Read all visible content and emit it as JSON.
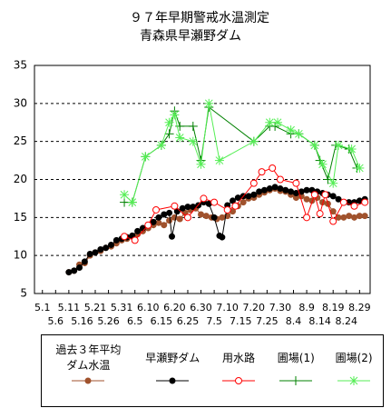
{
  "chart_data": {
    "type": "line",
    "title": "９７年早期警戒水温測定",
    "subtitle": "青森県早瀬野ダム",
    "xlim": [
      "4.28",
      "9.2"
    ],
    "xticks": [
      "5.1",
      "5.6",
      "5.11",
      "5.16",
      "5.21",
      "5.26",
      "5.31",
      "6.5",
      "6.10",
      "6.15",
      "6.20",
      "6.25",
      "6.30",
      "7.5",
      "7.10",
      "7.15",
      "7.20",
      "7.25",
      "7.30",
      "8.4",
      "8.9",
      "8.14",
      "8.19",
      "8.24",
      "8.29"
    ],
    "ylim": [
      5,
      35
    ],
    "yticks": [
      5,
      10,
      15,
      20,
      25,
      30,
      35
    ],
    "grid": true,
    "legend": "bottom",
    "series": [
      {
        "name": "過去３年平均ダム水温",
        "color": "#a0522d",
        "marker": "filled-circle",
        "x": [
          "5.11",
          "5.13",
          "5.15",
          "5.17",
          "5.19",
          "5.21",
          "5.23",
          "5.25",
          "5.27",
          "5.29",
          "5.31",
          "6.2",
          "6.4",
          "6.6",
          "6.8",
          "6.10",
          "6.12",
          "6.14",
          "6.16",
          "6.18",
          "6.20",
          "6.22",
          "6.24",
          "6.26",
          "6.28",
          "6.30",
          "7.2",
          "7.4",
          "7.6",
          "7.8",
          "7.10",
          "7.12",
          "7.14",
          "7.16",
          "7.18",
          "7.20",
          "7.22",
          "7.24",
          "7.26",
          "7.28",
          "7.30",
          "8.1",
          "8.3",
          "8.5",
          "8.7",
          "8.9",
          "8.11",
          "8.13",
          "8.15",
          "8.17",
          "8.19",
          "8.21",
          "8.23",
          "8.25",
          "8.27",
          "8.29",
          "8.31"
        ],
        "values": [
          7.8,
          8.0,
          8.8,
          9.0,
          10.0,
          10.4,
          10.6,
          11.0,
          11.2,
          11.6,
          12.0,
          12.2,
          12.6,
          12.8,
          13.2,
          13.6,
          14.0,
          14.3,
          14.0,
          14.6,
          15.0,
          14.8,
          15.6,
          16.0,
          16.2,
          15.4,
          15.2,
          15.0,
          14.8,
          15.0,
          15.2,
          15.8,
          16.5,
          17.0,
          17.5,
          17.6,
          18.0,
          18.3,
          18.6,
          18.8,
          18.5,
          18.4,
          18.0,
          17.6,
          17.8,
          17.4,
          17.2,
          17.6,
          17.0,
          16.8,
          15.8,
          15.0,
          15.0,
          15.2,
          15.0,
          15.2,
          15.2
        ]
      },
      {
        "name": "早瀬野ダム",
        "color": "#000000",
        "marker": "filled-circle",
        "x": [
          "5.11",
          "5.13",
          "5.15",
          "5.17",
          "5.19",
          "5.21",
          "5.23",
          "5.25",
          "5.27",
          "5.29",
          "5.31",
          "6.2",
          "6.4",
          "6.6",
          "6.8",
          "6.10",
          "6.12",
          "6.14",
          "6.16",
          "6.18",
          "6.19",
          "6.21",
          "6.23",
          "6.25",
          "6.27",
          "6.29",
          "7.1",
          "7.3",
          "7.5",
          "7.7",
          "7.8",
          "7.10",
          "7.12",
          "7.14",
          "7.16",
          "7.18",
          "7.20",
          "7.22",
          "7.24",
          "7.26",
          "7.28",
          "7.30",
          "8.1",
          "8.3",
          "8.5",
          "8.7",
          "8.9",
          "8.11",
          "8.13",
          "8.15",
          "8.17",
          "8.19",
          "8.21",
          "8.23",
          "8.25",
          "8.27",
          "8.29",
          "8.31"
        ],
        "values": [
          7.8,
          8.0,
          8.4,
          9.2,
          10.2,
          10.4,
          10.8,
          11.0,
          11.4,
          12.0,
          12.2,
          12.4,
          12.6,
          13.2,
          13.6,
          14.0,
          14.4,
          15.0,
          15.4,
          15.6,
          12.5,
          15.8,
          16.2,
          16.4,
          16.4,
          16.6,
          17.0,
          16.8,
          15.0,
          12.6,
          12.4,
          16.6,
          17.2,
          17.6,
          17.8,
          17.8,
          18.0,
          18.4,
          18.6,
          18.8,
          19.0,
          18.8,
          18.6,
          18.4,
          18.2,
          18.4,
          18.6,
          18.6,
          18.4,
          18.2,
          18.0,
          17.8,
          17.4,
          17.0,
          17.0,
          17.0,
          17.2,
          17.4
        ]
      },
      {
        "name": "用水路",
        "color": "#ff0000",
        "marker": "open-circle",
        "x": [
          "6.1",
          "6.5",
          "6.10",
          "6.13",
          "6.20",
          "6.25",
          "7.1",
          "7.5",
          "7.10",
          "7.13",
          "7.20",
          "7.23",
          "7.27",
          "7.30",
          "8.5",
          "8.9",
          "8.12",
          "8.14",
          "8.16",
          "8.19",
          "8.23",
          "8.27",
          "8.31"
        ],
        "values": [
          12.5,
          12.0,
          14.0,
          16.0,
          16.5,
          15.0,
          17.5,
          17.0,
          16.0,
          16.5,
          19.5,
          21.0,
          21.5,
          20.0,
          19.5,
          15.0,
          18.0,
          15.5,
          18.0,
          14.5,
          17.0,
          16.5,
          17.0
        ]
      },
      {
        "name": "圃場(1)",
        "color": "#008000",
        "marker": "plus",
        "x": [
          "6.1",
          "6.4",
          "6.9",
          "6.15",
          "6.18",
          "6.20",
          "6.22",
          "6.27",
          "6.30",
          "7.3",
          "7.20",
          "7.26",
          "7.28",
          "8.3",
          "8.6",
          "8.12",
          "8.14",
          "8.17",
          "8.20",
          "8.25",
          "8.28"
        ],
        "values": [
          17.0,
          17.0,
          23.0,
          24.5,
          26.0,
          29.0,
          27.0,
          27.0,
          22.5,
          29.5,
          25.0,
          27.0,
          27.0,
          26.0,
          26.0,
          24.5,
          22.5,
          20.0,
          24.5,
          24.0,
          21.5
        ]
      },
      {
        "name": "圃場(2)",
        "color": "#55ee55",
        "marker": "asterisk",
        "x": [
          "6.1",
          "6.4",
          "6.9",
          "6.15",
          "6.18",
          "6.20",
          "6.22",
          "6.27",
          "6.30",
          "7.3",
          "7.7",
          "7.20",
          "7.26",
          "7.29",
          "8.3",
          "8.6",
          "8.12",
          "8.15",
          "8.19",
          "8.21",
          "8.26",
          "8.29"
        ],
        "values": [
          18.0,
          17.0,
          23.0,
          24.5,
          27.5,
          28.5,
          25.5,
          25.0,
          22.0,
          30.0,
          22.5,
          25.0,
          27.5,
          27.5,
          26.5,
          26.0,
          24.5,
          22.0,
          19.5,
          24.5,
          24.0,
          21.5
        ]
      }
    ]
  }
}
